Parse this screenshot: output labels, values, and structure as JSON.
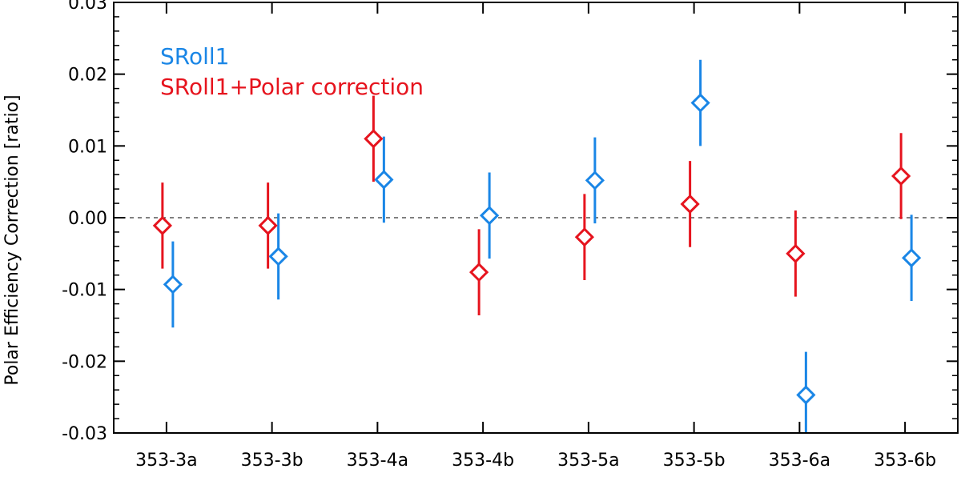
{
  "chart_data": {
    "type": "scatter",
    "title": "",
    "xlabel": "",
    "ylabel": "Polar Efficiency Correction [ratio]",
    "categories": [
      "353-3a",
      "353-3b",
      "353-4a",
      "353-4b",
      "353-5a",
      "353-5b",
      "353-6a",
      "353-6b"
    ],
    "ylim": [
      -0.03,
      0.03
    ],
    "yticks": [
      "0.03",
      "0.02",
      "0.01",
      "0.00",
      "-0.01",
      "-0.02",
      "-0.03"
    ],
    "ytick_values": [
      0.03,
      0.02,
      0.01,
      0.0,
      -0.01,
      -0.02,
      -0.03
    ],
    "reference_line": 0.0,
    "legend_position": "top-left",
    "series": [
      {
        "name": "SRoll1",
        "color": "#1a86e6",
        "values": [
          -0.0093,
          -0.0054,
          0.0053,
          0.0003,
          0.0052,
          0.016,
          -0.0247,
          -0.0056
        ],
        "errors": [
          0.006,
          0.006,
          0.006,
          0.006,
          0.006,
          0.006,
          0.006,
          0.006
        ]
      },
      {
        "name": "SRoll1+Polar correction",
        "color": "#e6141e",
        "values": [
          -0.0011,
          -0.0011,
          0.011,
          -0.0076,
          -0.0027,
          0.0019,
          -0.005,
          0.0058
        ],
        "errors": [
          0.006,
          0.006,
          0.006,
          0.006,
          0.006,
          0.006,
          0.006,
          0.006
        ]
      }
    ]
  }
}
